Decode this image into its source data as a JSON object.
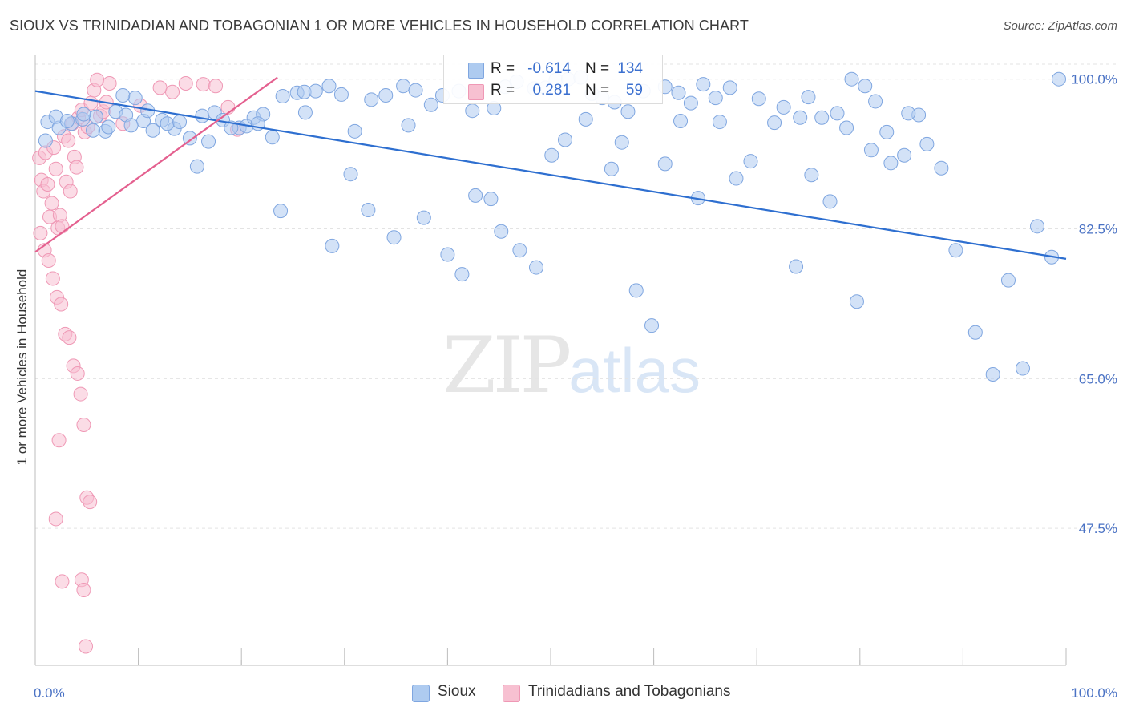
{
  "title": "SIOUX VS TRINIDADIAN AND TOBAGONIAN 1 OR MORE VEHICLES IN HOUSEHOLD CORRELATION CHART",
  "source": "Source: ZipAtlas.com",
  "watermark": {
    "zip": "ZIP",
    "atlas": "atlas"
  },
  "legend_top": {
    "rows": [
      {
        "r_label": "R =",
        "r_value": "-0.614",
        "n_label": "N =",
        "n_value": "134"
      },
      {
        "r_label": "R =",
        "r_value": "0.281",
        "n_label": "N =",
        "n_value": "59"
      }
    ]
  },
  "legend_bottom": {
    "items": [
      {
        "label": "Sioux"
      },
      {
        "label": "Trinidadians and Tobagonians"
      }
    ]
  },
  "colors": {
    "sioux_fill": "#aecbf0",
    "sioux_stroke": "#7fa6e0",
    "sioux_line": "#2e6fd0",
    "trini_fill": "#f7c0d1",
    "trini_stroke": "#ef98b5",
    "trini_line": "#e4608f",
    "tick_text": "#4a72c4",
    "grid": "#e3e3e3"
  },
  "chart_data": {
    "type": "scatter",
    "title": "SIOUX VS TRINIDADIAN AND TOBAGONIAN 1 OR MORE VEHICLES IN HOUSEHOLD CORRELATION CHART",
    "ylabel": "1 or more Vehicles in Household",
    "xlabel": "",
    "xlim": [
      0,
      100
    ],
    "ylim": [
      31.5,
      102.5
    ],
    "x_tick_labels": [
      {
        "value": 0,
        "label": "0.0%"
      },
      {
        "value": 100,
        "label": "100.0%"
      }
    ],
    "y_ticks": [
      {
        "value": 100.0,
        "label": "100.0%"
      },
      {
        "value": 82.5,
        "label": "82.5%"
      },
      {
        "value": 65.0,
        "label": "65.0%"
      },
      {
        "value": 47.5,
        "label": "47.5%"
      }
    ],
    "grid": true,
    "legend": "top-center",
    "series": [
      {
        "name": "Sioux",
        "R": -0.614,
        "N": 134,
        "trendline": {
          "x": [
            0,
            100
          ],
          "y": [
            98.6,
            79.0
          ]
        },
        "points": [
          [
            1.2,
            95.0
          ],
          [
            2.3,
            94.3
          ],
          [
            3.5,
            94.8
          ],
          [
            4.6,
            95.3
          ],
          [
            5.9,
            95.6
          ],
          [
            6.8,
            93.9
          ],
          [
            7.8,
            96.2
          ],
          [
            8.8,
            95.8
          ],
          [
            9.7,
            97.8
          ],
          [
            10.5,
            95.1
          ],
          [
            11.4,
            94.0
          ],
          [
            12.3,
            95.2
          ],
          [
            13.5,
            94.2
          ],
          [
            15.0,
            93.1
          ],
          [
            16.2,
            95.7
          ],
          [
            17.4,
            96.1
          ],
          [
            18.2,
            95.2
          ],
          [
            19.8,
            94.3
          ],
          [
            20.5,
            94.5
          ],
          [
            21.2,
            95.5
          ],
          [
            22.1,
            95.9
          ],
          [
            23.0,
            93.2
          ],
          [
            24.0,
            98.0
          ],
          [
            25.4,
            98.4
          ],
          [
            26.1,
            98.5
          ],
          [
            27.2,
            98.6
          ],
          [
            28.5,
            99.2
          ],
          [
            29.7,
            98.2
          ],
          [
            31.0,
            93.9
          ],
          [
            32.6,
            97.6
          ],
          [
            34.0,
            98.1
          ],
          [
            35.7,
            99.2
          ],
          [
            36.9,
            98.7
          ],
          [
            38.4,
            97.0
          ],
          [
            39.5,
            98.1
          ],
          [
            41.1,
            98.6
          ],
          [
            42.4,
            96.3
          ],
          [
            44.5,
            96.6
          ],
          [
            45.6,
            99.1
          ],
          [
            46.7,
            99.7
          ],
          [
            48.4,
            98.9
          ],
          [
            49.5,
            99.0
          ],
          [
            50.5,
            99.9
          ],
          [
            51.7,
            100.0
          ],
          [
            52.9,
            100.2
          ],
          [
            54.0,
            98.3
          ],
          [
            55.0,
            97.8
          ],
          [
            56.2,
            97.3
          ],
          [
            57.5,
            96.2
          ],
          [
            59.0,
            98.6
          ],
          [
            61.1,
            99.1
          ],
          [
            62.4,
            98.4
          ],
          [
            63.6,
            97.2
          ],
          [
            64.8,
            99.4
          ],
          [
            66.0,
            97.8
          ],
          [
            67.4,
            99.0
          ],
          [
            70.2,
            97.7
          ],
          [
            72.6,
            96.7
          ],
          [
            74.2,
            95.5
          ],
          [
            75.0,
            97.9
          ],
          [
            76.3,
            95.5
          ],
          [
            77.8,
            96.0
          ],
          [
            78.7,
            94.3
          ],
          [
            79.2,
            100.0
          ],
          [
            80.5,
            99.2
          ],
          [
            81.5,
            97.4
          ],
          [
            82.6,
            93.8
          ],
          [
            84.3,
            91.1
          ],
          [
            85.7,
            95.8
          ],
          [
            1.0,
            92.8
          ],
          [
            2.0,
            95.6
          ],
          [
            3.1,
            95.1
          ],
          [
            4.7,
            95.9
          ],
          [
            5.6,
            94.0
          ],
          [
            7.1,
            94.4
          ],
          [
            8.5,
            98.1
          ],
          [
            9.3,
            94.6
          ],
          [
            10.9,
            96.3
          ],
          [
            12.8,
            94.8
          ],
          [
            14.0,
            95.0
          ],
          [
            15.7,
            89.8
          ],
          [
            16.8,
            92.7
          ],
          [
            19.0,
            94.3
          ],
          [
            21.6,
            94.8
          ],
          [
            23.8,
            84.6
          ],
          [
            26.2,
            96.1
          ],
          [
            28.8,
            80.5
          ],
          [
            30.6,
            88.9
          ],
          [
            32.3,
            84.7
          ],
          [
            34.8,
            81.5
          ],
          [
            36.2,
            94.6
          ],
          [
            37.7,
            83.8
          ],
          [
            40.0,
            79.5
          ],
          [
            41.4,
            77.2
          ],
          [
            42.7,
            86.4
          ],
          [
            44.2,
            86.0
          ],
          [
            45.2,
            82.2
          ],
          [
            47.0,
            80.0
          ],
          [
            48.6,
            78.0
          ],
          [
            50.1,
            91.1
          ],
          [
            51.4,
            92.9
          ],
          [
            53.4,
            95.3
          ],
          [
            55.9,
            89.5
          ],
          [
            56.9,
            92.6
          ],
          [
            58.3,
            75.3
          ],
          [
            59.8,
            71.2
          ],
          [
            61.1,
            90.1
          ],
          [
            62.6,
            95.1
          ],
          [
            64.3,
            86.1
          ],
          [
            66.4,
            95.0
          ],
          [
            68.0,
            88.4
          ],
          [
            69.4,
            90.4
          ],
          [
            71.7,
            94.9
          ],
          [
            73.8,
            78.1
          ],
          [
            75.3,
            88.8
          ],
          [
            77.1,
            85.7
          ],
          [
            79.7,
            74.0
          ],
          [
            81.1,
            91.7
          ],
          [
            83.0,
            90.2
          ],
          [
            84.7,
            96.0
          ],
          [
            86.5,
            92.4
          ],
          [
            87.9,
            89.6
          ],
          [
            89.3,
            80.0
          ],
          [
            91.2,
            70.4
          ],
          [
            92.9,
            65.5
          ],
          [
            94.4,
            76.5
          ],
          [
            95.8,
            66.2
          ],
          [
            97.2,
            82.8
          ],
          [
            98.6,
            79.2
          ],
          [
            99.3,
            100.0
          ]
        ]
      },
      {
        "name": "Trinidadians and Tobagonians",
        "R": 0.281,
        "N": 59,
        "trendline": {
          "x": [
            0,
            23.5
          ],
          "y": [
            79.8,
            100.2
          ]
        },
        "points": [
          [
            0.4,
            90.8
          ],
          [
            0.6,
            88.2
          ],
          [
            0.8,
            86.9
          ],
          [
            1.0,
            91.4
          ],
          [
            1.2,
            87.7
          ],
          [
            1.4,
            83.9
          ],
          [
            1.6,
            85.5
          ],
          [
            1.8,
            92.0
          ],
          [
            2.0,
            89.5
          ],
          [
            2.2,
            82.6
          ],
          [
            2.4,
            84.1
          ],
          [
            2.6,
            82.8
          ],
          [
            2.8,
            93.3
          ],
          [
            3.0,
            88.0
          ],
          [
            3.2,
            92.8
          ],
          [
            3.4,
            86.9
          ],
          [
            3.6,
            94.8
          ],
          [
            3.8,
            90.9
          ],
          [
            4.0,
            89.7
          ],
          [
            4.2,
            95.5
          ],
          [
            4.5,
            96.4
          ],
          [
            4.8,
            93.8
          ],
          [
            5.1,
            94.4
          ],
          [
            5.4,
            97.2
          ],
          [
            5.7,
            98.7
          ],
          [
            6.0,
            99.9
          ],
          [
            6.3,
            95.7
          ],
          [
            6.6,
            96.2
          ],
          [
            6.9,
            97.3
          ],
          [
            7.2,
            99.5
          ],
          [
            0.5,
            82.0
          ],
          [
            0.9,
            80.0
          ],
          [
            1.3,
            78.8
          ],
          [
            1.7,
            76.7
          ],
          [
            2.1,
            74.5
          ],
          [
            2.5,
            73.7
          ],
          [
            2.9,
            70.2
          ],
          [
            3.3,
            69.8
          ],
          [
            3.7,
            66.5
          ],
          [
            4.1,
            65.6
          ],
          [
            4.4,
            63.2
          ],
          [
            4.7,
            59.6
          ],
          [
            5.0,
            51.1
          ],
          [
            5.3,
            50.6
          ],
          [
            2.0,
            48.6
          ],
          [
            2.6,
            41.3
          ],
          [
            4.5,
            41.5
          ],
          [
            4.7,
            40.3
          ],
          [
            4.9,
            33.7
          ],
          [
            2.3,
            57.8
          ],
          [
            8.5,
            94.8
          ],
          [
            10.2,
            96.9
          ],
          [
            12.1,
            99.0
          ],
          [
            13.3,
            98.5
          ],
          [
            14.6,
            99.5
          ],
          [
            16.3,
            99.4
          ],
          [
            17.5,
            99.2
          ],
          [
            18.7,
            96.7
          ],
          [
            19.6,
            94.1
          ]
        ]
      }
    ]
  }
}
